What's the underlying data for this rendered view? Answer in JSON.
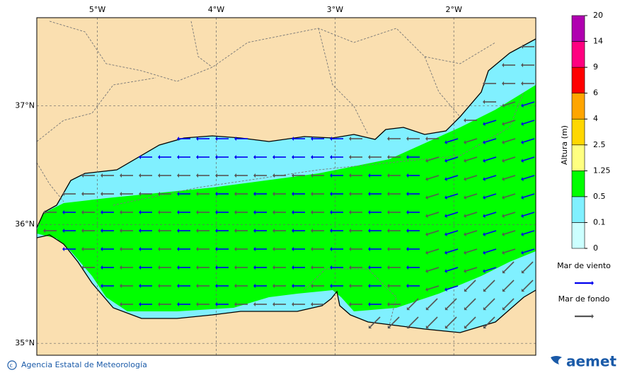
{
  "map": {
    "lon_ticks": [
      {
        "value": -5,
        "label": "5°W"
      },
      {
        "value": -4,
        "label": "4°W"
      },
      {
        "value": -3,
        "label": "3°W"
      },
      {
        "value": -2,
        "label": "2°W"
      }
    ],
    "lat_ticks": [
      {
        "value": 37,
        "label": "37°N"
      },
      {
        "value": 36,
        "label": "36°N"
      },
      {
        "value": 35,
        "label": "35°N"
      }
    ],
    "xlim": [
      -5.51,
      -1.31
    ],
    "ylim": [
      34.9,
      37.74
    ],
    "grid": true
  },
  "colorbar": {
    "title": "Altura (m)",
    "levels": [
      0,
      0.1,
      0.5,
      1.25,
      2.5,
      4,
      6,
      9,
      14,
      20
    ],
    "colors": [
      "#ccffff",
      "#80f0ff",
      "#00ff00",
      "#ffff80",
      "#ffd700",
      "#ffa500",
      "#ff0000",
      "#ff0080",
      "#b000b0"
    ]
  },
  "legend": [
    {
      "label": "Mar de viento",
      "color": "#0000ee"
    },
    {
      "label": "Mar de fondo",
      "color": "#555555"
    }
  ],
  "footer": {
    "credit": "Agencia Estatal de Meteorología",
    "logo": "aemet"
  }
}
